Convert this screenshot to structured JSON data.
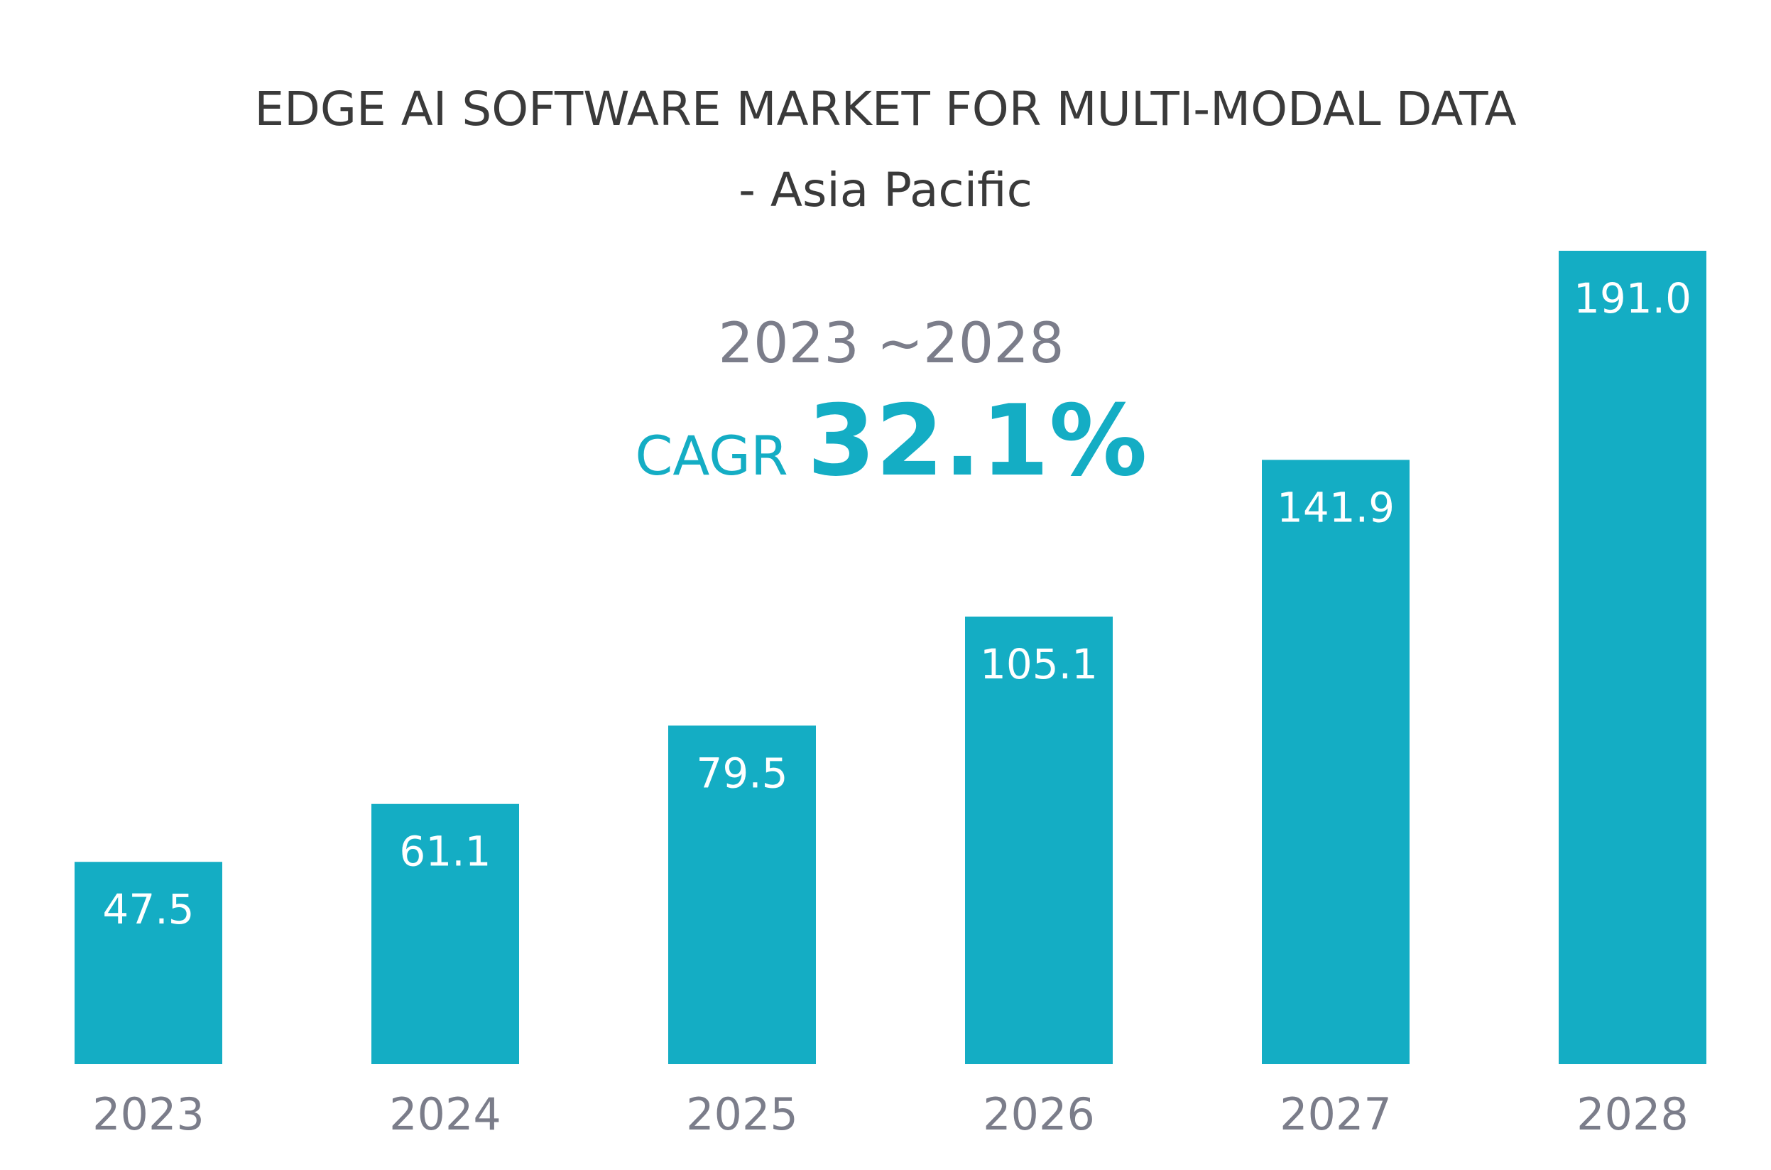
{
  "chart_data": {
    "type": "bar",
    "title": "EDGE AI SOFTWARE MARKET FOR MULTI-MODAL DATA",
    "subtitle": "- Asia Pacific",
    "annotation": {
      "period": "2023 ~2028",
      "cagr_label": "CAGR",
      "cagr_value": "32.1%"
    },
    "categories": [
      "2023",
      "2024",
      "2025",
      "2026",
      "2027",
      "2028"
    ],
    "values": [
      47.5,
      61.1,
      79.5,
      105.1,
      141.9,
      191.0
    ],
    "value_labels": [
      "47.5",
      "61.1",
      "79.5",
      "105.1",
      "141.9",
      "191.0"
    ],
    "xlabel": "",
    "ylabel": "",
    "ylim": [
      0,
      191.0
    ],
    "grid": false,
    "bar_color": "#14adc4"
  }
}
